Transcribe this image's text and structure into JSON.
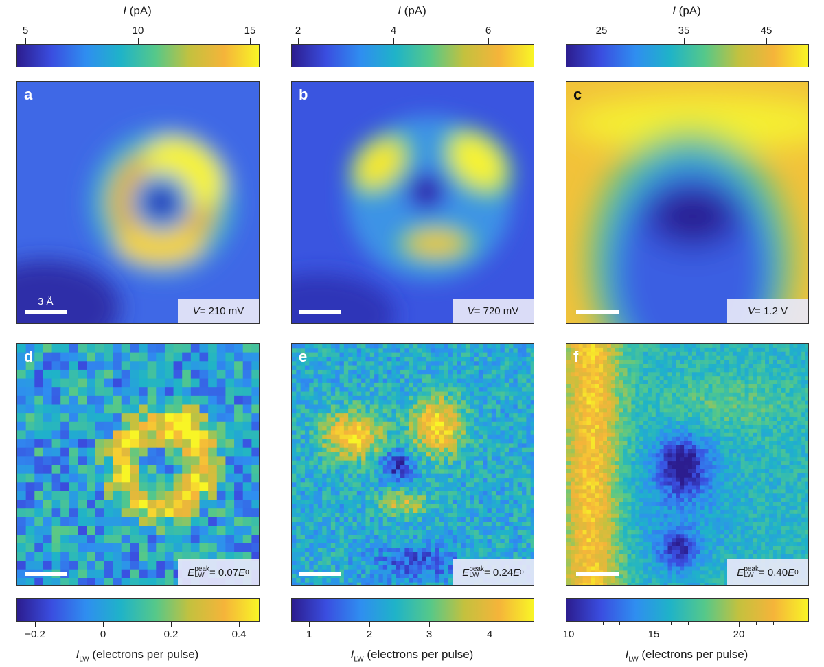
{
  "top_colorbars": [
    {
      "title_var": "I",
      "title_unit": " (pA)",
      "ticks": [
        "5",
        "10",
        "15"
      ],
      "tick_values": [
        5,
        10,
        15
      ],
      "range": [
        5,
        15.5
      ]
    },
    {
      "title_var": "I",
      "title_unit": " (pA)",
      "ticks": [
        "2",
        "4",
        "6"
      ],
      "tick_values": [
        2,
        4,
        6
      ],
      "range": [
        2,
        6.9
      ]
    },
    {
      "title_var": "I",
      "title_unit": " (pA)",
      "ticks": [
        "25",
        "35",
        "45"
      ],
      "tick_values": [
        25,
        35,
        45
      ],
      "range": [
        19,
        49
      ]
    }
  ],
  "bottom_colorbars": [
    {
      "ticks": [
        "−0.2",
        "0",
        "0.2",
        "0.4"
      ],
      "tick_values": [
        -0.2,
        0,
        0.2,
        0.4
      ],
      "range": [
        -0.25,
        0.46
      ],
      "title_var": "I",
      "title_sub": "LW",
      "title_unit": " (electrons per pulse)"
    },
    {
      "ticks": [
        "1",
        "2",
        "3",
        "4"
      ],
      "tick_values": [
        1,
        2,
        3,
        4
      ],
      "range": [
        0.7,
        4.7
      ],
      "title_var": "I",
      "title_sub": "LW",
      "title_unit": " (electrons per pulse)"
    },
    {
      "ticks": [
        "10",
        "15",
        "20"
      ],
      "tick_values": [
        10,
        15,
        20
      ],
      "minor_values": [
        11,
        12,
        13,
        14,
        16,
        17,
        18,
        19,
        21,
        22,
        23
      ],
      "range": [
        10,
        24
      ],
      "title_var": "I",
      "title_sub": "LW",
      "title_unit": " (electrons per pulse)"
    }
  ],
  "panels": {
    "a": {
      "letter": "a",
      "scale_label": "3 Å",
      "voltage_var": "V",
      "voltage_value": " = 210 mV"
    },
    "b": {
      "letter": "b",
      "voltage_var": "V",
      "voltage_value": " = 720 mV"
    },
    "c": {
      "letter": "c",
      "voltage_var": "V",
      "voltage_value": " = 1.2 V"
    },
    "d": {
      "letter": "d",
      "energy_var": "E",
      "energy_sub": "LW",
      "energy_sup": "peak",
      "energy_value": " = 0.07",
      "energy_unit_var": "E",
      "energy_unit_sub": "0"
    },
    "e": {
      "letter": "e",
      "energy_var": "E",
      "energy_sub": "LW",
      "energy_sup": "peak",
      "energy_value": " = 0.24",
      "energy_unit_var": "E",
      "energy_unit_sub": "0"
    },
    "f": {
      "letter": "f",
      "energy_var": "E",
      "energy_sub": "LW",
      "energy_sup": "peak",
      "energy_value": " = 0.40",
      "energy_unit_var": "E",
      "energy_unit_sub": "0"
    }
  },
  "colormap": [
    "#2c1d8f",
    "#3a4ee0",
    "#2f8ef0",
    "#1fb3c8",
    "#55c88a",
    "#c4c13e",
    "#f5b43a",
    "#f8f526"
  ]
}
